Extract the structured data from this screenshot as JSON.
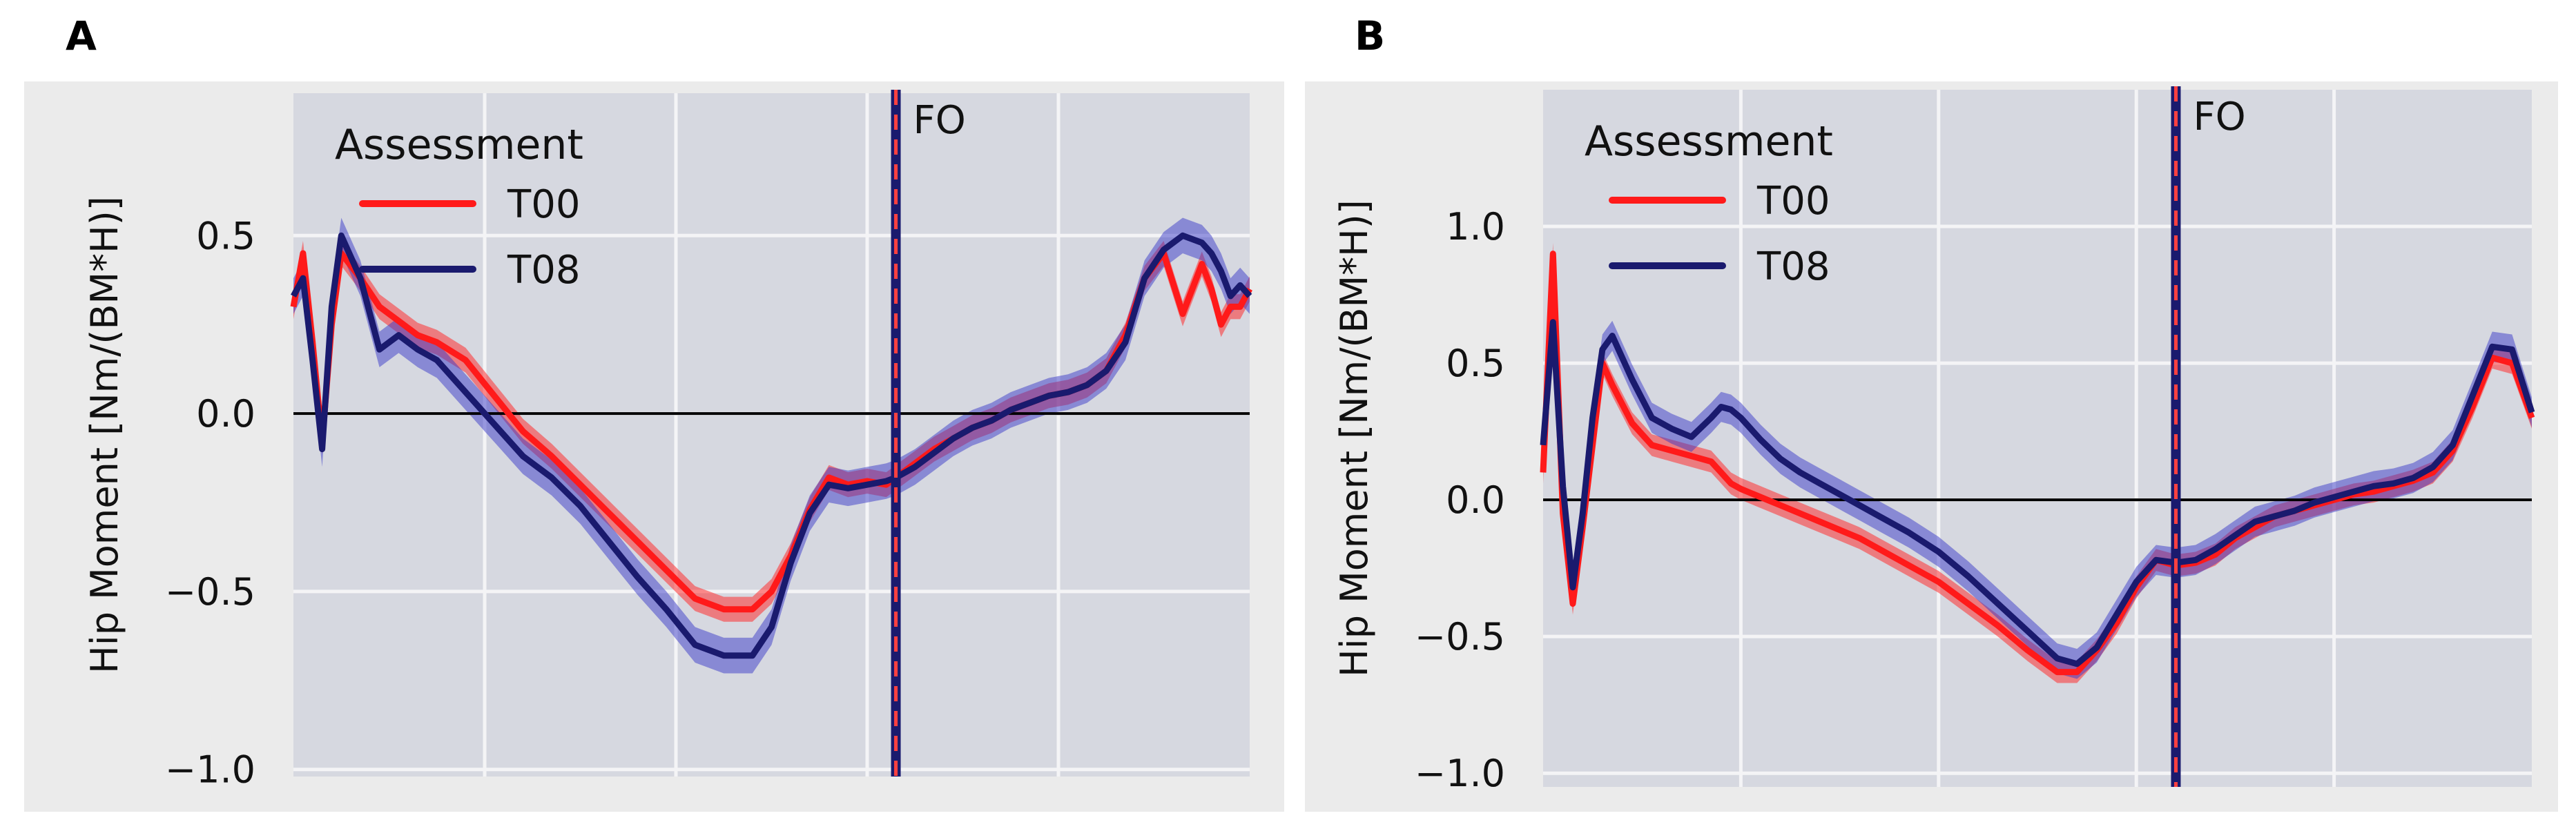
{
  "colors": {
    "figure_bg": "#ebebeb",
    "plot_bg": "#d6d8e0",
    "grid": "#f4f4f6",
    "t00": "#ff1a1a",
    "t08": "#1a1a6e",
    "t00_band": "#ff3030",
    "t08_band": "#3a3ac8",
    "zero_line": "#000000",
    "fo_outer": "#1a1a6e",
    "fo_inner": "#ff4040"
  },
  "chart_data": [
    {
      "panel": "A",
      "type": "line",
      "xlabel": "",
      "ylabel": "Hip Moment [Nm/(BM*H)]",
      "xlim": [
        0,
        100
      ],
      "ylim": [
        -1.02,
        0.9
      ],
      "xgrid": [
        20,
        40,
        60,
        80
      ],
      "yticks": [
        0.5,
        0.0,
        -0.5,
        -1.0
      ],
      "ytick_labels": [
        "0.5",
        "0.0",
        "−0.5",
        "−1.0"
      ],
      "zero_line": 0,
      "fo": {
        "x": 63,
        "label": "FO"
      },
      "legend": {
        "title": "Assessment",
        "entries": [
          "T00",
          "T08"
        ],
        "placement": "top-left"
      },
      "x": [
        0,
        1,
        2,
        3,
        4,
        5,
        7,
        9,
        11,
        13,
        15,
        18,
        21,
        24,
        27,
        30,
        33,
        36,
        39,
        42,
        45,
        48,
        50,
        52,
        54,
        56,
        58,
        60,
        62,
        63,
        65,
        67,
        69,
        71,
        73,
        75,
        77,
        79,
        81,
        83,
        85,
        87,
        89,
        91,
        93,
        95,
        96,
        97,
        98,
        99,
        100
      ],
      "series": [
        {
          "name": "T00",
          "values": [
            0.3,
            0.45,
            0.2,
            -0.08,
            0.25,
            0.45,
            0.38,
            0.3,
            0.26,
            0.22,
            0.2,
            0.15,
            0.05,
            -0.05,
            -0.12,
            -0.2,
            -0.28,
            -0.36,
            -0.44,
            -0.52,
            -0.55,
            -0.55,
            -0.5,
            -0.4,
            -0.27,
            -0.18,
            -0.2,
            -0.19,
            -0.2,
            -0.18,
            -0.14,
            -0.1,
            -0.07,
            -0.04,
            -0.02,
            0.01,
            0.03,
            0.05,
            0.06,
            0.08,
            0.12,
            0.22,
            0.38,
            0.45,
            0.28,
            0.42,
            0.35,
            0.25,
            0.3,
            0.3,
            0.35
          ],
          "band": 0.035
        },
        {
          "name": "T08",
          "values": [
            0.33,
            0.38,
            0.15,
            -0.1,
            0.3,
            0.5,
            0.38,
            0.18,
            0.22,
            0.18,
            0.15,
            0.06,
            -0.03,
            -0.12,
            -0.18,
            -0.26,
            -0.36,
            -0.46,
            -0.55,
            -0.65,
            -0.68,
            -0.68,
            -0.6,
            -0.42,
            -0.28,
            -0.2,
            -0.21,
            -0.2,
            -0.19,
            -0.18,
            -0.15,
            -0.11,
            -0.07,
            -0.04,
            -0.02,
            0.01,
            0.03,
            0.05,
            0.06,
            0.08,
            0.12,
            0.2,
            0.38,
            0.46,
            0.5,
            0.48,
            0.45,
            0.4,
            0.33,
            0.36,
            0.33
          ],
          "band": 0.05
        }
      ]
    },
    {
      "panel": "B",
      "type": "line",
      "xlabel": "",
      "ylabel": "Hip Moment [Nm/(BM*H)]",
      "xlim": [
        0,
        100
      ],
      "ylim": [
        -1.05,
        1.5
      ],
      "xgrid": [
        20,
        40,
        60,
        80
      ],
      "yticks": [
        1.0,
        0.5,
        0.0,
        -0.5,
        -1.0
      ],
      "ytick_labels": [
        "1.0",
        "0.5",
        "0.0",
        "−0.5",
        "−1.0"
      ],
      "zero_line": 0,
      "fo": {
        "x": 64,
        "label": "FO"
      },
      "legend": {
        "title": "Assessment",
        "entries": [
          "T00",
          "T08"
        ],
        "placement": "top-left"
      },
      "x": [
        0,
        1,
        2,
        3,
        4,
        5,
        6,
        7,
        9,
        11,
        13,
        15,
        17,
        18,
        19,
        20,
        22,
        24,
        26,
        28,
        30,
        32,
        34,
        37,
        40,
        43,
        46,
        49,
        52,
        54,
        56,
        58,
        60,
        62,
        64,
        66,
        68,
        70,
        72,
        74,
        76,
        78,
        80,
        82,
        84,
        86,
        88,
        90,
        92,
        94,
        96,
        98,
        100
      ],
      "series": [
        {
          "name": "T00",
          "values": [
            0.1,
            0.9,
            -0.05,
            -0.38,
            -0.1,
            0.2,
            0.5,
            0.42,
            0.28,
            0.2,
            0.18,
            0.16,
            0.14,
            0.1,
            0.06,
            0.04,
            0.01,
            -0.02,
            -0.05,
            -0.08,
            -0.11,
            -0.14,
            -0.18,
            -0.24,
            -0.3,
            -0.38,
            -0.46,
            -0.55,
            -0.63,
            -0.63,
            -0.55,
            -0.45,
            -0.32,
            -0.22,
            -0.24,
            -0.23,
            -0.2,
            -0.14,
            -0.1,
            -0.06,
            -0.04,
            -0.02,
            0.0,
            0.02,
            0.03,
            0.05,
            0.07,
            0.1,
            0.18,
            0.34,
            0.52,
            0.5,
            0.3
          ],
          "band": 0.04
        },
        {
          "name": "T08",
          "values": [
            0.2,
            0.65,
            0.05,
            -0.32,
            -0.05,
            0.3,
            0.55,
            0.6,
            0.44,
            0.3,
            0.26,
            0.23,
            0.3,
            0.34,
            0.33,
            0.3,
            0.22,
            0.15,
            0.1,
            0.06,
            0.02,
            -0.02,
            -0.06,
            -0.12,
            -0.19,
            -0.28,
            -0.38,
            -0.48,
            -0.58,
            -0.6,
            -0.54,
            -0.42,
            -0.3,
            -0.22,
            -0.23,
            -0.22,
            -0.18,
            -0.13,
            -0.08,
            -0.06,
            -0.04,
            -0.01,
            0.01,
            0.03,
            0.05,
            0.06,
            0.08,
            0.12,
            0.2,
            0.38,
            0.56,
            0.55,
            0.32
          ],
          "band": 0.055
        }
      ]
    }
  ]
}
